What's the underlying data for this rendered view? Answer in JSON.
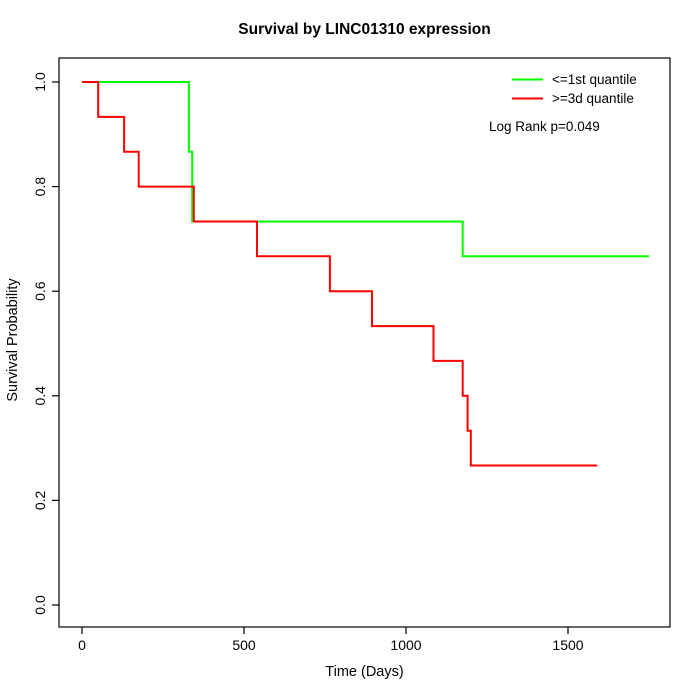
{
  "chart_data": {
    "type": "line",
    "subtype": "kaplan-meier-step-curves",
    "title": "Survival by LINC01310 expression",
    "xlabel": "Time (Days)",
    "ylabel": "Survival Probability",
    "xlim": [
      0,
      1750
    ],
    "ylim": [
      0.0,
      1.0
    ],
    "grid": false,
    "xticks": [
      0,
      500,
      1000,
      1500
    ],
    "xtick_labels": [
      "0",
      "500",
      "1000",
      "1500"
    ],
    "yticks": [
      0.0,
      0.2,
      0.4,
      0.6,
      0.8,
      1.0
    ],
    "ytick_labels": [
      "0.0",
      "0.2",
      "0.4",
      "0.6",
      "0.8",
      "1.0"
    ],
    "legend_position": "top-right",
    "annotation": "Log Rank p=0.049",
    "series": [
      {
        "name": "<=1st quantile",
        "color": "#00ff00",
        "points_time_days_vs_survival_prob": [
          [
            0,
            1.0
          ],
          [
            330,
            0.8667
          ],
          [
            340,
            0.7333
          ],
          [
            1175,
            0.6667
          ],
          [
            1750,
            0.6667
          ]
        ]
      },
      {
        "name": ">=3d quantile",
        "color": "#ff0000",
        "points_time_days_vs_survival_prob": [
          [
            0,
            1.0
          ],
          [
            50,
            0.9333
          ],
          [
            130,
            0.8667
          ],
          [
            175,
            0.8
          ],
          [
            345,
            0.7333
          ],
          [
            540,
            0.6667
          ],
          [
            765,
            0.6
          ],
          [
            895,
            0.5333
          ],
          [
            1085,
            0.4667
          ],
          [
            1175,
            0.4
          ],
          [
            1190,
            0.3333
          ],
          [
            1200,
            0.2667
          ],
          [
            1590,
            0.2667
          ]
        ]
      }
    ]
  }
}
